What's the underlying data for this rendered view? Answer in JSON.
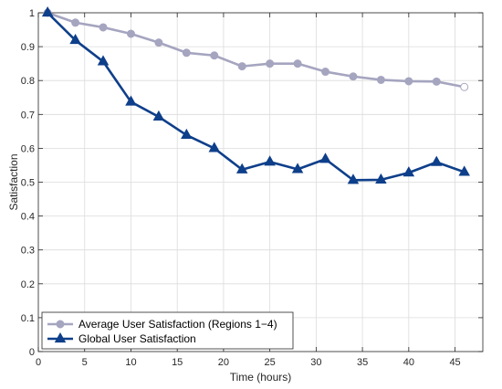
{
  "chart_data": {
    "type": "line",
    "title": "",
    "xlabel": "Time (hours)",
    "ylabel": "Satisfaction",
    "xlim": [
      0,
      48
    ],
    "ylim": [
      0,
      1
    ],
    "xticks": [
      0,
      5,
      10,
      15,
      20,
      25,
      30,
      35,
      40,
      45
    ],
    "yticks": [
      0,
      0.1,
      0.2,
      0.3,
      0.4,
      0.5,
      0.6,
      0.7,
      0.8,
      0.9,
      1
    ],
    "x_tick_labels": [
      "0",
      "5",
      "10",
      "15",
      "20",
      "25",
      "30",
      "35",
      "40",
      "45"
    ],
    "y_tick_labels": [
      "0",
      "0.1",
      "0.2",
      "0.3",
      "0.4",
      "0.5",
      "0.6",
      "0.7",
      "0.8",
      "0.9",
      "1"
    ],
    "grid": true,
    "legend_position": "bottom-left",
    "x": [
      1,
      4,
      7,
      10,
      13,
      16,
      19,
      22,
      25,
      28,
      31,
      34,
      37,
      40,
      43,
      46
    ],
    "series": [
      {
        "name": "Average User Satisfaction (Regions 1−4)",
        "color": "#a5a5c0",
        "marker": "circle",
        "values": [
          1.0,
          0.971,
          0.957,
          0.938,
          0.912,
          0.882,
          0.874,
          0.842,
          0.85,
          0.85,
          0.826,
          0.812,
          0.802,
          0.798,
          0.797,
          0.781
        ]
      },
      {
        "name": "Global User Satisfaction",
        "color": "#0e3f8a",
        "marker": "triangle",
        "values": [
          1.0,
          0.919,
          0.856,
          0.737,
          0.693,
          0.639,
          0.6,
          0.537,
          0.56,
          0.538,
          0.568,
          0.506,
          0.507,
          0.528,
          0.559,
          0.53
        ]
      }
    ]
  }
}
